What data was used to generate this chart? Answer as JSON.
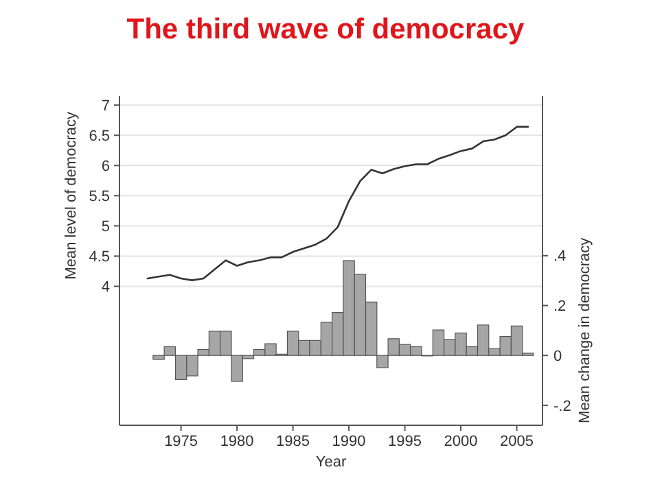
{
  "chart_data": {
    "type": "line",
    "title": "The third wave of democracy",
    "xlabel": "Year",
    "ylabel": "Mean level of democracy",
    "y2label": "Mean change in democracy",
    "xlim": [
      1969.5,
      2007.3
    ],
    "xticks": [
      1975,
      1980,
      1985,
      1990,
      1995,
      2000,
      2005
    ],
    "ylim": [
      1.7,
      7.15
    ],
    "yticks": [
      4,
      4.5,
      5,
      5.5,
      6,
      6.5,
      7
    ],
    "y2lim": [
      -0.28,
      1.04
    ],
    "y2ticks": [
      {
        "value": -0.2,
        "label": "-.2"
      },
      {
        "value": 0,
        "label": "0"
      },
      {
        "value": 0.2,
        "label": ".2"
      },
      {
        "value": 0.4,
        "label": ".4"
      }
    ],
    "grid": "y",
    "tick_labels": "xy",
    "series": [
      {
        "color": "#333333",
        "x": [
          1972,
          1973,
          1974,
          1975,
          1976,
          1977,
          1978,
          1979,
          1980,
          1981,
          1982,
          1983,
          1984,
          1985,
          1986,
          1987,
          1988,
          1989,
          1990,
          1991,
          1992,
          1993,
          1994,
          1995,
          1996,
          1997,
          1998,
          1999,
          2000,
          2001,
          2002,
          2003,
          2004,
          2005,
          2006
        ],
        "values": [
          4.13,
          4.16,
          4.19,
          4.13,
          4.1,
          4.13,
          4.28,
          4.43,
          4.34,
          4.4,
          4.43,
          4.48,
          4.48,
          4.57,
          4.63,
          4.69,
          4.79,
          4.98,
          5.41,
          5.74,
          5.93,
          5.87,
          5.94,
          5.99,
          6.02,
          6.02,
          6.11,
          6.17,
          6.24,
          6.28,
          6.4,
          6.43,
          6.5,
          6.64,
          6.64
        ]
      },
      {
        "type": "bar",
        "axis": "y2",
        "color": "#a6a6a6",
        "x": [
          1973,
          1974,
          1975,
          1976,
          1977,
          1978,
          1979,
          1980,
          1981,
          1982,
          1983,
          1984,
          1985,
          1986,
          1987,
          1988,
          1989,
          1990,
          1991,
          1992,
          1993,
          1994,
          1995,
          1996,
          1997,
          1998,
          1999,
          2000,
          2001,
          2002,
          2003,
          2004,
          2005,
          2006
        ],
        "values": [
          -0.016,
          0.035,
          -0.097,
          -0.082,
          0.024,
          0.097,
          0.097,
          -0.104,
          -0.013,
          0.024,
          0.047,
          0.005,
          0.097,
          0.06,
          0.06,
          0.133,
          0.172,
          0.38,
          0.325,
          0.214,
          -0.049,
          0.067,
          0.044,
          0.035,
          -0.002,
          0.102,
          0.064,
          0.09,
          0.035,
          0.122,
          0.027,
          0.076,
          0.118,
          0.009
        ]
      }
    ]
  }
}
